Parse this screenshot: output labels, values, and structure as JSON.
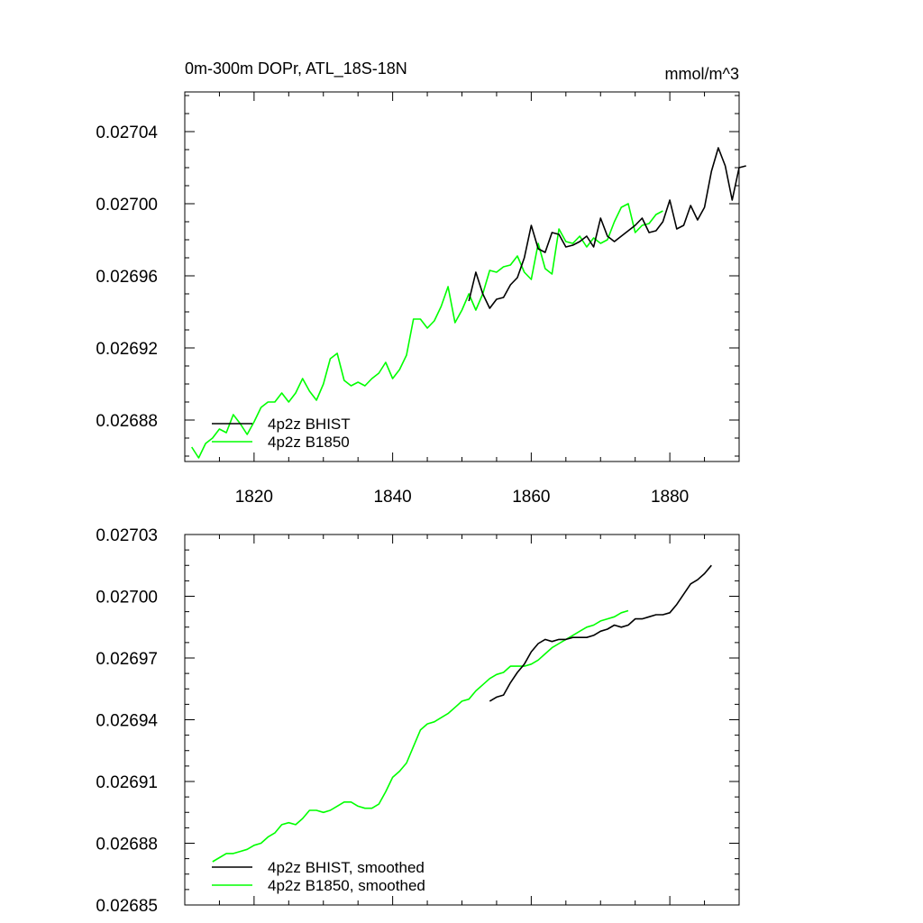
{
  "colors": {
    "bhist": "#000000",
    "b1850": "#00ff00",
    "background": "#ffffff",
    "axis": "#000000"
  },
  "chart_data": [
    {
      "type": "line",
      "title": "0m-300m DOPr, ATL_18S-18N",
      "units": "mmol/m^3",
      "xlim": [
        1810,
        1890
      ],
      "ylim": [
        0.026857,
        0.027062
      ],
      "xticks": [
        1820,
        1840,
        1860,
        1880
      ],
      "xtick_labels": [
        "1820",
        "1840",
        "1860",
        "1880"
      ],
      "yticks": [
        0.02688,
        0.02692,
        0.02696,
        0.027,
        0.02704
      ],
      "ytick_labels": [
        "0.02688",
        "0.02692",
        "0.02696",
        "0.02700",
        "0.02704"
      ],
      "legend_position": "bottom-left",
      "series": [
        {
          "name": "4p2z BHIST",
          "color": "#000000",
          "x_start": 1851,
          "x_step": 1,
          "values": [
            0.026946,
            0.026962,
            0.02695,
            0.026942,
            0.026947,
            0.026948,
            0.026955,
            0.026959,
            0.02697,
            0.026988,
            0.026975,
            0.026973,
            0.026984,
            0.026983,
            0.026976,
            0.026977,
            0.026979,
            0.026982,
            0.026976,
            0.026992,
            0.026982,
            0.026979,
            0.026982,
            0.026985,
            0.026988,
            0.026992,
            0.026984,
            0.026985,
            0.02699,
            0.027002,
            0.026986,
            0.026988,
            0.026999,
            0.026991,
            0.026998,
            0.027018,
            0.027031,
            0.027021,
            0.027002,
            0.02702,
            0.027021
          ]
        },
        {
          "name": "4p2z B1850",
          "color": "#00ff00",
          "x_start": 1811,
          "x_step": 1,
          "values": [
            0.026865,
            0.026859,
            0.026867,
            0.02687,
            0.026875,
            0.026873,
            0.026883,
            0.026878,
            0.026872,
            0.026879,
            0.026887,
            0.02689,
            0.02689,
            0.026895,
            0.02689,
            0.026895,
            0.026903,
            0.026896,
            0.026891,
            0.0269,
            0.026914,
            0.026917,
            0.026902,
            0.026899,
            0.026901,
            0.026899,
            0.026903,
            0.026906,
            0.026912,
            0.026903,
            0.026908,
            0.026916,
            0.026936,
            0.026936,
            0.026931,
            0.026935,
            0.026943,
            0.026954,
            0.026934,
            0.026941,
            0.02695,
            0.026941,
            0.02695,
            0.026963,
            0.026962,
            0.026965,
            0.026966,
            0.026971,
            0.026962,
            0.026958,
            0.026978,
            0.026964,
            0.026961,
            0.026986,
            0.026979,
            0.026978,
            0.026982,
            0.026976,
            0.026981,
            0.026978,
            0.02698,
            0.02699,
            0.026998,
            0.027,
            0.026984,
            0.026988,
            0.026989,
            0.026994,
            0.026996
          ]
        }
      ]
    },
    {
      "type": "line",
      "title": "",
      "xlim": [
        1810,
        1890
      ],
      "ylim": [
        0.02685,
        0.02703
      ],
      "xticks": [
        1820,
        1840,
        1860,
        1880
      ],
      "yticks": [
        0.02685,
        0.02688,
        0.02691,
        0.02694,
        0.02697,
        0.027,
        0.02703
      ],
      "ytick_labels": [
        "0.02685",
        "0.02688",
        "0.02691",
        "0.02694",
        "0.02697",
        "0.02700",
        "0.02703"
      ],
      "legend_position": "bottom-left",
      "series": [
        {
          "name": "4p2z BHIST, smoothed",
          "color": "#000000",
          "x_start": 1854,
          "x_step": 1,
          "values": [
            0.026949,
            0.026951,
            0.026952,
            0.026958,
            0.026963,
            0.026967,
            0.026973,
            0.026977,
            0.026979,
            0.026978,
            0.026979,
            0.026979,
            0.02698,
            0.02698,
            0.02698,
            0.026981,
            0.026983,
            0.026984,
            0.026986,
            0.026985,
            0.026986,
            0.026989,
            0.026989,
            0.02699,
            0.026991,
            0.026991,
            0.026992,
            0.026996,
            0.027001,
            0.027006,
            0.027008,
            0.027011,
            0.027015
          ]
        },
        {
          "name": "4p2z B1850, smoothed",
          "color": "#00ff00",
          "x_start": 1814,
          "x_step": 1,
          "values": [
            0.026871,
            0.026873,
            0.026875,
            0.026875,
            0.026876,
            0.026877,
            0.026879,
            0.02688,
            0.026883,
            0.026885,
            0.026889,
            0.02689,
            0.026889,
            0.026892,
            0.026896,
            0.026896,
            0.026895,
            0.026896,
            0.026898,
            0.0269,
            0.0269,
            0.026898,
            0.026897,
            0.026897,
            0.026899,
            0.026905,
            0.026912,
            0.026915,
            0.026919,
            0.026927,
            0.026935,
            0.026938,
            0.026939,
            0.026941,
            0.026943,
            0.026946,
            0.026949,
            0.02695,
            0.026954,
            0.026957,
            0.02696,
            0.026962,
            0.026963,
            0.026966,
            0.026966,
            0.026966,
            0.026967,
            0.026969,
            0.026972,
            0.026975,
            0.026977,
            0.026979,
            0.026981,
            0.026983,
            0.026985,
            0.026986,
            0.026988,
            0.026989,
            0.02699,
            0.026992,
            0.026993
          ]
        }
      ]
    }
  ]
}
